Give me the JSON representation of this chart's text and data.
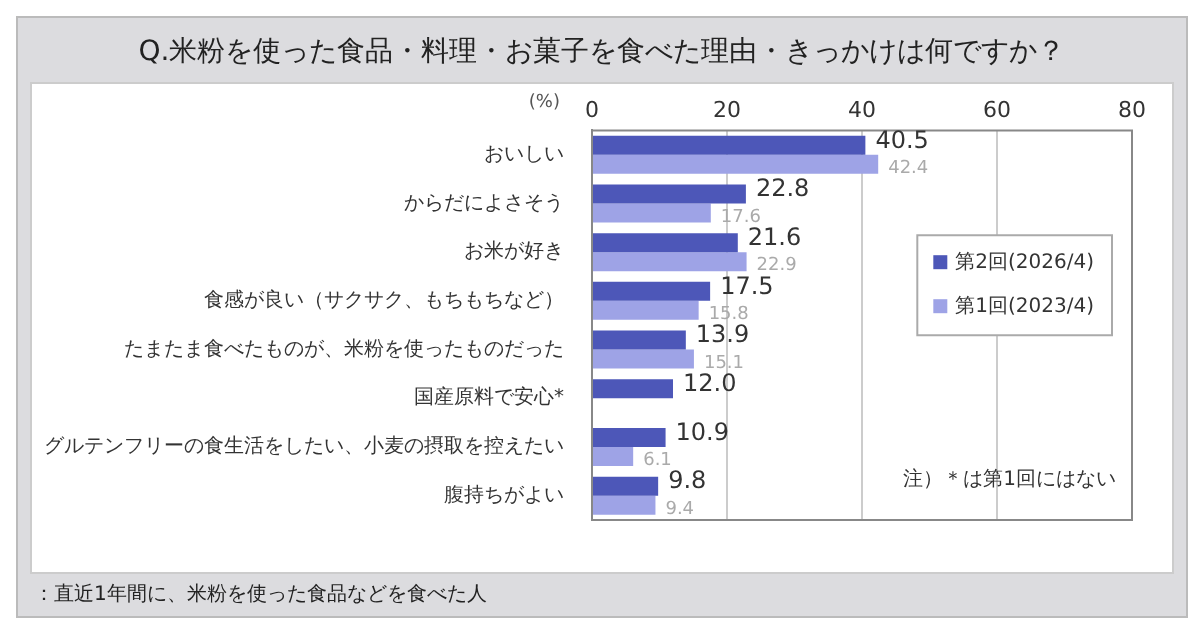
{
  "chart_data": {
    "type": "bar",
    "orientation": "horizontal",
    "title": "Q.米粉を使った食品・料理・お菓子を食べた理由・きっかけは何ですか？",
    "xlabel": "(%)",
    "categories": [
      "おいしい",
      "からだによさそう",
      "お米が好き",
      "食感が良い（サクサク、もちもちなど）",
      "たまたま食べたものが、米粉を使ったものだった",
      "国産原料で安心*",
      "グルテンフリーの食生活をしたい、小麦の摂取を控えたい",
      "腹持ちがよい"
    ],
    "series": [
      {
        "name": "第2回(2026/4)",
        "color": "#4d57b8",
        "values": [
          40.5,
          22.8,
          21.6,
          17.5,
          13.9,
          12.0,
          10.9,
          9.8
        ],
        "value_labels": [
          "40.5",
          "22.8",
          "21.6",
          "17.5",
          "13.9",
          "12.0",
          "10.9",
          "9.8"
        ]
      },
      {
        "name": "第1回(2023/4)",
        "color": "#9ea3e6",
        "values": [
          42.4,
          17.6,
          22.9,
          15.8,
          15.1,
          null,
          6.1,
          9.4
        ],
        "value_labels": [
          "42.4",
          "17.6",
          "22.9",
          "15.8",
          "15.1",
          null,
          "6.1",
          "9.4"
        ]
      }
    ],
    "xlim": [
      0,
      80
    ],
    "xticks": [
      0,
      20,
      40,
      60,
      80
    ],
    "grid": "x",
    "legend": "right",
    "annotations": [
      "注）＊は第1回にはない",
      "：直近1年間に、米粉を使った食品などを食べた人"
    ]
  }
}
